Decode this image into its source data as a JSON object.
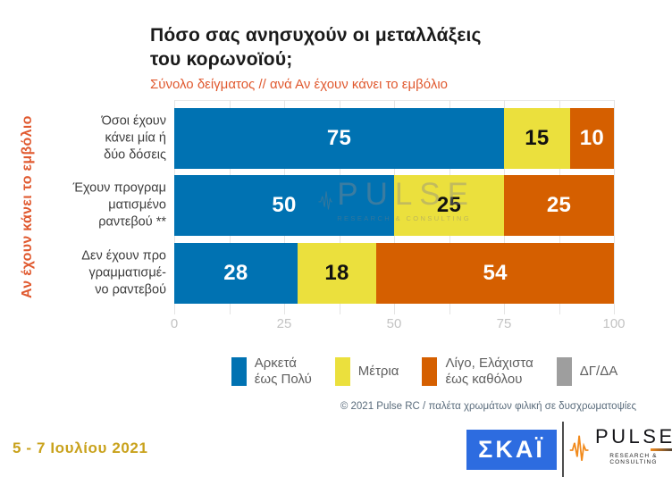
{
  "header": {
    "title": "Πόσο σας ανησυχούν οι μεταλλάξεις\nτου κορωνοϊού;",
    "subtitle": "Σύνολο δείγματος // ανά Αν έχουν κάνει το εμβόλιο"
  },
  "chart_data": {
    "type": "bar",
    "orientation": "horizontal_stacked",
    "axis_label": "Αν έχουν κάνει το εμβόλιο",
    "categories": [
      "Όσοι έχουν κάνει μία ή δύο δόσεις",
      "Έχουν προγραμματισμένο ραντεβού **",
      "Δεν έχουν προγραμματισμένο ραντεβού"
    ],
    "category_lines": [
      [
        "Όσοι έχουν",
        "κάνει μία ή",
        "δύο δόσεις"
      ],
      [
        "Έχουν προγραμ",
        "ματισμένο",
        "ραντεβού **"
      ],
      [
        "Δεν έχουν προ",
        "γραμματισμέ-",
        "νο ραντεβού"
      ]
    ],
    "series": [
      {
        "name": "Αρκετά έως Πολύ",
        "color": "#0072b2",
        "label_color": "#ffffff",
        "values": [
          75,
          50,
          28
        ]
      },
      {
        "name": "Μέτρια",
        "color": "#ebe03d",
        "label_color": "#111111",
        "values": [
          15,
          25,
          18
        ]
      },
      {
        "name": "Λίγο, Ελάχιστα έως καθόλου",
        "color": "#d55f00",
        "label_color": "#ffffff",
        "values": [
          10,
          25,
          54
        ]
      },
      {
        "name": "ΔΓ/ΔΑ",
        "color": "#9e9e9e",
        "label_color": "#ffffff",
        "values": [
          0,
          0,
          0
        ]
      }
    ],
    "x_ticks": [
      0,
      25,
      50,
      75,
      100
    ],
    "xlim": [
      0,
      100
    ],
    "gridline_step": 12.5,
    "grid": true,
    "legend_position": "bottom",
    "legend": [
      {
        "label_lines": [
          "Αρκετά",
          "έως Πολύ"
        ],
        "color": "#0072b2"
      },
      {
        "label_lines": [
          "Μέτρια"
        ],
        "color": "#ebe03d"
      },
      {
        "label_lines": [
          "Λίγο, Ελάχιστα",
          "έως καθόλου"
        ],
        "color": "#d55f00"
      },
      {
        "label_lines": [
          "ΔΓ/ΔΑ"
        ],
        "color": "#9e9e9e"
      }
    ]
  },
  "watermark": {
    "text": "PULSE",
    "subtext": "RESEARCH & CONSULTING"
  },
  "footer": {
    "copyright": "© 2021 Pulse RC   /   παλέτα χρωμάτων φιλική σε δυσχρωματοψίες",
    "date_range": "5 - 7  Ιουλίου  2021"
  },
  "logos": {
    "skai_text": "ΣΚΑΪ",
    "pulse_text": "PULSE",
    "pulse_subtext": "RESEARCH & CONSULTING"
  },
  "colors": {
    "accent_orange_text": "#e0592f",
    "bar_blue": "#0072b2",
    "bar_yellow": "#ebe03d",
    "bar_orange": "#d55f00",
    "bar_gray": "#9e9e9e",
    "date_gold": "#c9a21c",
    "skai_blue": "#2d6ce0"
  }
}
